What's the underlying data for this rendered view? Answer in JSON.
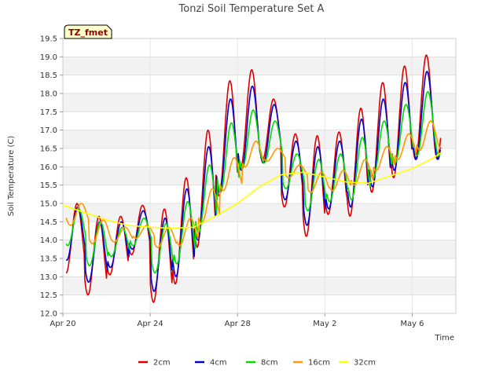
{
  "chart_data": {
    "type": "line",
    "title": "Tonzi Soil Temperature Set A",
    "xlabel": "Time",
    "ylabel": "Soil Temperature (C)",
    "badge": "TZ_fmet",
    "ylim": [
      12.0,
      19.5
    ],
    "xlim_days": [
      0,
      18
    ],
    "yticks": [
      "12.0",
      "12.5",
      "13.0",
      "13.5",
      "14.0",
      "14.5",
      "15.0",
      "15.5",
      "16.0",
      "16.5",
      "17.0",
      "17.5",
      "18.0",
      "18.5",
      "19.0",
      "19.5"
    ],
    "xticks": [
      {
        "day": 0,
        "label": "Apr 20"
      },
      {
        "day": 4,
        "label": "Apr 24"
      },
      {
        "day": 8,
        "label": "Apr 28"
      },
      {
        "day": 12,
        "label": "May 2"
      },
      {
        "day": 16,
        "label": "May 6"
      }
    ],
    "grid": true,
    "legend_position": "bottom",
    "series": [
      {
        "name": "2cm",
        "color": "#dd0000",
        "min": [
          13.1,
          12.5,
          13.05,
          13.6,
          12.3,
          12.8,
          13.8,
          15.2,
          16.0,
          16.2,
          14.9,
          14.1,
          14.7,
          14.65,
          15.3,
          15.7,
          16.2
        ],
        "max": [
          15.0,
          14.65,
          14.65,
          14.95,
          14.85,
          15.7,
          17.0,
          18.35,
          18.65,
          17.85,
          16.9,
          16.85,
          16.95,
          17.6,
          18.3,
          18.75,
          19.05
        ]
      },
      {
        "name": "4cm",
        "color": "#0000cc",
        "min": [
          13.45,
          12.85,
          13.25,
          13.75,
          12.6,
          13.0,
          14.0,
          15.3,
          15.9,
          16.1,
          15.1,
          14.4,
          14.85,
          14.9,
          15.45,
          15.9,
          16.2
        ],
        "max": [
          14.9,
          14.5,
          14.5,
          14.8,
          14.6,
          15.4,
          16.55,
          17.85,
          18.2,
          17.7,
          16.7,
          16.55,
          16.7,
          17.3,
          17.85,
          18.3,
          18.6
        ]
      },
      {
        "name": "8cm",
        "color": "#00dd00",
        "min": [
          13.85,
          13.3,
          13.55,
          13.85,
          13.1,
          13.35,
          14.2,
          15.3,
          15.95,
          16.1,
          15.4,
          14.8,
          15.05,
          15.1,
          15.7,
          16.1,
          16.3
        ],
        "max": [
          14.85,
          14.5,
          14.35,
          14.6,
          14.45,
          15.05,
          16.05,
          17.2,
          17.55,
          17.25,
          16.35,
          16.2,
          16.35,
          16.8,
          17.25,
          17.7,
          18.05
        ]
      },
      {
        "name": "16cm",
        "color": "#ff9900",
        "min": [
          14.4,
          13.9,
          13.95,
          14.05,
          13.8,
          13.85,
          14.45,
          15.35,
          16.0,
          16.15,
          15.7,
          15.3,
          15.35,
          15.5,
          15.9,
          16.2,
          16.45
        ],
        "max": [
          15.0,
          14.55,
          14.35,
          14.4,
          14.35,
          14.6,
          15.4,
          16.25,
          16.7,
          16.5,
          16.05,
          15.85,
          15.9,
          16.2,
          16.55,
          16.9,
          17.25
        ]
      },
      {
        "name": "32cm",
        "color": "#ffff00",
        "points": [
          [
            0.0,
            14.95
          ],
          [
            1.0,
            14.75
          ],
          [
            2.0,
            14.55
          ],
          [
            3.0,
            14.4
          ],
          [
            4.0,
            14.35
          ],
          [
            5.0,
            14.32
          ],
          [
            6.0,
            14.35
          ],
          [
            7.0,
            14.65
          ],
          [
            8.0,
            15.0
          ],
          [
            9.0,
            15.45
          ],
          [
            10.0,
            15.78
          ],
          [
            11.0,
            15.85
          ],
          [
            12.0,
            15.72
          ],
          [
            13.0,
            15.58
          ],
          [
            14.0,
            15.55
          ],
          [
            15.0,
            15.75
          ],
          [
            16.0,
            15.95
          ],
          [
            17.0,
            16.25
          ],
          [
            17.3,
            16.38
          ]
        ]
      }
    ]
  }
}
